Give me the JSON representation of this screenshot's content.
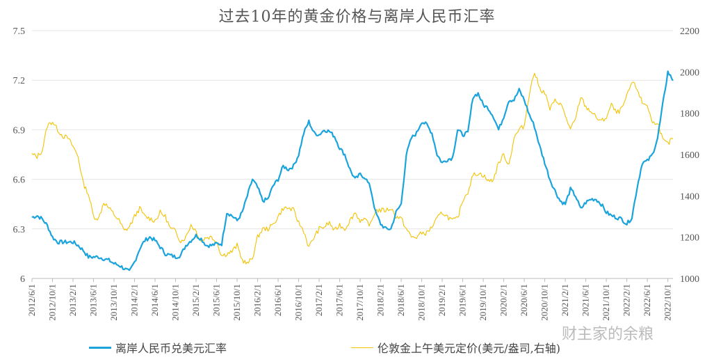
{
  "chart_data": {
    "type": "line",
    "title": "过去10年的黄金价格与离岸人民币汇率",
    "y_left": {
      "min": 6,
      "max": 7.5,
      "ticks": [
        6,
        6.3,
        6.6,
        6.9,
        7.2,
        7.5
      ],
      "tick_labels": [
        "6",
        "6.3",
        "6.6",
        "6.9",
        "7.2",
        "7.5"
      ]
    },
    "y_right": {
      "min": 1000,
      "max": 2200,
      "ticks": [
        1000,
        1200,
        1400,
        1600,
        1800,
        2000,
        2200
      ],
      "tick_labels": [
        "1000",
        "1200",
        "1400",
        "1600",
        "1800",
        "2000",
        "2200"
      ]
    },
    "x_tick_labels": [
      "2012/6/1",
      "2012/10/1",
      "2013/2/1",
      "2013/6/1",
      "2013/10/1",
      "2014/2/1",
      "2014/6/1",
      "2014/10/1",
      "2015/2/1",
      "2015/6/1",
      "2015/10/1",
      "2016/2/1",
      "2016/6/1",
      "2016/10/1",
      "2017/2/1",
      "2017/6/1",
      "2017/10/1",
      "2018/2/1",
      "2018/6/1",
      "2018/10/1",
      "2019/2/1",
      "2019/6/1",
      "2019/10/1",
      "2020/2/1",
      "2020/6/1",
      "2020/10/1",
      "2021/2/1",
      "2021/6/1",
      "2021/10/1",
      "2022/2/1",
      "2022/6/1",
      "2022/10/1"
    ],
    "grid": "horizontal",
    "legend_position": "bottom",
    "x": [
      "2012/6",
      "2012/7",
      "2012/8",
      "2012/9",
      "2012/10",
      "2012/11",
      "2012/12",
      "2013/1",
      "2013/2",
      "2013/3",
      "2013/4",
      "2013/5",
      "2013/6",
      "2013/7",
      "2013/8",
      "2013/9",
      "2013/10",
      "2013/11",
      "2013/12",
      "2014/1",
      "2014/2",
      "2014/3",
      "2014/4",
      "2014/5",
      "2014/6",
      "2014/7",
      "2014/8",
      "2014/9",
      "2014/10",
      "2014/11",
      "2014/12",
      "2015/1",
      "2015/2",
      "2015/3",
      "2015/4",
      "2015/5",
      "2015/6",
      "2015/7",
      "2015/8",
      "2015/9",
      "2015/10",
      "2015/11",
      "2015/12",
      "2016/1",
      "2016/2",
      "2016/3",
      "2016/4",
      "2016/5",
      "2016/6",
      "2016/7",
      "2016/8",
      "2016/9",
      "2016/10",
      "2016/11",
      "2016/12",
      "2017/1",
      "2017/2",
      "2017/3",
      "2017/4",
      "2017/5",
      "2017/6",
      "2017/7",
      "2017/8",
      "2017/9",
      "2017/10",
      "2017/11",
      "2017/12",
      "2018/1",
      "2018/2",
      "2018/3",
      "2018/4",
      "2018/5",
      "2018/6",
      "2018/7",
      "2018/8",
      "2018/9",
      "2018/10",
      "2018/11",
      "2018/12",
      "2019/1",
      "2019/2",
      "2019/3",
      "2019/4",
      "2019/5",
      "2019/6",
      "2019/7",
      "2019/8",
      "2019/9",
      "2019/10",
      "2019/11",
      "2019/12",
      "2020/1",
      "2020/2",
      "2020/3",
      "2020/4",
      "2020/5",
      "2020/6",
      "2020/7",
      "2020/8",
      "2020/9",
      "2020/10",
      "2020/11",
      "2020/12",
      "2021/1",
      "2021/2",
      "2021/3",
      "2021/4",
      "2021/5",
      "2021/6",
      "2021/7",
      "2021/8",
      "2021/9",
      "2021/10",
      "2021/11",
      "2021/12",
      "2022/1",
      "2022/2",
      "2022/3",
      "2022/4",
      "2022/5",
      "2022/6",
      "2022/7",
      "2022/8",
      "2022/9",
      "2022/10",
      "2022/11"
    ],
    "series": [
      {
        "name": "离岸人民币兑美元汇率",
        "axis": "left",
        "color": "#1aa3dc",
        "values": [
          6.37,
          6.38,
          6.36,
          6.32,
          6.25,
          6.22,
          6.22,
          6.22,
          6.22,
          6.2,
          6.17,
          6.13,
          6.13,
          6.13,
          6.12,
          6.11,
          6.09,
          6.08,
          6.06,
          6.04,
          6.1,
          6.18,
          6.23,
          6.25,
          6.23,
          6.19,
          6.15,
          6.14,
          6.13,
          6.14,
          6.2,
          6.23,
          6.26,
          6.24,
          6.2,
          6.2,
          6.21,
          6.21,
          6.4,
          6.38,
          6.35,
          6.4,
          6.5,
          6.6,
          6.55,
          6.47,
          6.48,
          6.56,
          6.6,
          6.68,
          6.66,
          6.68,
          6.75,
          6.88,
          6.95,
          6.88,
          6.87,
          6.9,
          6.89,
          6.86,
          6.79,
          6.75,
          6.66,
          6.6,
          6.63,
          6.61,
          6.55,
          6.4,
          6.33,
          6.3,
          6.3,
          6.4,
          6.45,
          6.75,
          6.85,
          6.88,
          6.95,
          6.93,
          6.88,
          6.75,
          6.7,
          6.72,
          6.73,
          6.9,
          6.87,
          6.88,
          7.1,
          7.12,
          7.05,
          7.03,
          6.98,
          6.9,
          6.98,
          7.08,
          7.08,
          7.14,
          7.08,
          6.99,
          6.92,
          6.8,
          6.7,
          6.6,
          6.53,
          6.47,
          6.45,
          6.54,
          6.5,
          6.42,
          6.46,
          6.48,
          6.48,
          6.45,
          6.4,
          6.38,
          6.37,
          6.36,
          6.33,
          6.37,
          6.55,
          6.7,
          6.71,
          6.75,
          6.85,
          7.05,
          7.25,
          7.2
        ]
      },
      {
        "name": "伦敦金上午美元定价(美元/盎司,右轴)",
        "axis": "right",
        "color": "#f2c200",
        "values": [
          1600,
          1590,
          1620,
          1740,
          1760,
          1720,
          1690,
          1680,
          1640,
          1590,
          1460,
          1410,
          1300,
          1290,
          1370,
          1340,
          1310,
          1280,
          1230,
          1250,
          1300,
          1340,
          1300,
          1290,
          1280,
          1320,
          1300,
          1240,
          1230,
          1180,
          1200,
          1260,
          1230,
          1180,
          1200,
          1200,
          1180,
          1110,
          1120,
          1130,
          1160,
          1090,
          1070,
          1100,
          1200,
          1240,
          1240,
          1260,
          1300,
          1340,
          1340,
          1330,
          1270,
          1230,
          1150,
          1200,
          1240,
          1250,
          1270,
          1230,
          1260,
          1240,
          1280,
          1320,
          1280,
          1280,
          1260,
          1330,
          1330,
          1330,
          1340,
          1300,
          1290,
          1240,
          1200,
          1200,
          1220,
          1220,
          1250,
          1290,
          1320,
          1300,
          1280,
          1290,
          1380,
          1420,
          1500,
          1510,
          1500,
          1470,
          1480,
          1560,
          1600,
          1550,
          1680,
          1720,
          1740,
          1900,
          2000,
          1920,
          1900,
          1820,
          1860,
          1850,
          1790,
          1720,
          1770,
          1880,
          1830,
          1810,
          1780,
          1760,
          1780,
          1840,
          1800,
          1820,
          1880,
          1950,
          1920,
          1850,
          1840,
          1750,
          1760,
          1670,
          1650,
          1680
        ]
      }
    ]
  },
  "watermark": "财主家的余粮"
}
